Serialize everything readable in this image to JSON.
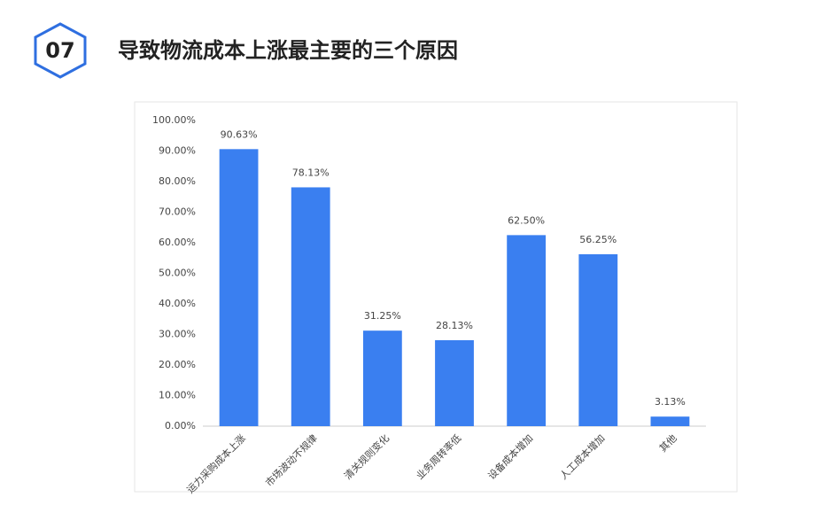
{
  "header": {
    "number": "07",
    "title": "导致物流成本上涨最主要的三个原因"
  },
  "chart_data": {
    "type": "bar",
    "categories": [
      "运力采购成本上涨",
      "市场波动不规律",
      "清关规则变化",
      "业务周转率低",
      "设备成本增加",
      "人工成本增加",
      "其他"
    ],
    "values": [
      90.63,
      78.13,
      31.25,
      28.13,
      62.5,
      56.25,
      3.13
    ],
    "value_labels": [
      "90.63%",
      "78.13%",
      "31.25%",
      "28.13%",
      "62.50%",
      "56.25%",
      "3.13%"
    ],
    "color": "#3a7ff0",
    "ylim": [
      0,
      100
    ],
    "yticks": [
      {
        "value": 0,
        "label": "0.00%"
      },
      {
        "value": 10,
        "label": "10.00%"
      },
      {
        "value": 20,
        "label": "20.00%"
      },
      {
        "value": 30,
        "label": "30.00%"
      },
      {
        "value": 40,
        "label": "40.00%"
      },
      {
        "value": 50,
        "label": "50.00%"
      },
      {
        "value": 60,
        "label": "60.00%"
      },
      {
        "value": 70,
        "label": "70.00%"
      },
      {
        "value": 80,
        "label": "80.00%"
      },
      {
        "value": 90,
        "label": "90.00%"
      },
      {
        "value": 100,
        "label": "100.00%"
      }
    ],
    "grid": false
  }
}
